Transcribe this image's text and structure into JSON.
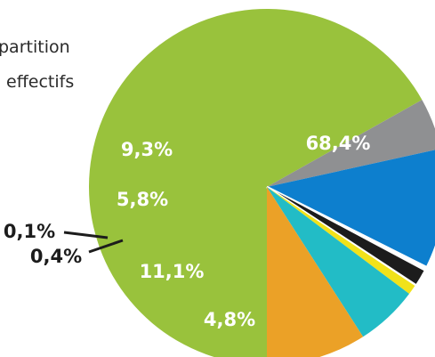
{
  "title_lines": [
    "partition",
    "effectifs"
  ],
  "chart_data": {
    "type": "pie",
    "title": "partition effectifs",
    "slices": [
      {
        "label": "68,4%",
        "value": 68.4,
        "color": "#99c23c"
      },
      {
        "label": "4,8%",
        "value": 4.8,
        "color": "#8f9092"
      },
      {
        "label": "11,1%",
        "value": 11.1,
        "color": "#0d7fce"
      },
      {
        "label": "0,4%",
        "value": 0.4,
        "color": "#ffffff"
      },
      {
        "label": "",
        "value": 1.5,
        "color": "#1c1c1c"
      },
      {
        "label": "0,1%",
        "value": 0.1,
        "color": "#ffffff"
      },
      {
        "label": "",
        "value": 0.9,
        "color": "#f1e21a"
      },
      {
        "label": "5,8%",
        "value": 5.8,
        "color": "#22bcc6"
      },
      {
        "label": "9,3%",
        "value": 9.3,
        "color": "#eba127"
      }
    ],
    "label_color_inside": "#ffffff",
    "label_color_outside": "#1c1c1c"
  }
}
